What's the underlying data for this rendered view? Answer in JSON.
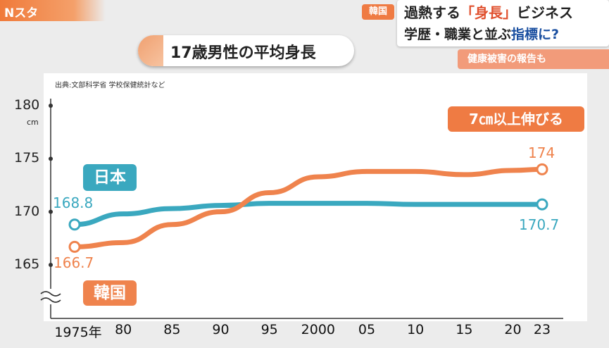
{
  "broadcast": {
    "logo": "Nスタ",
    "tag": "韓国",
    "headline_line1_pre": "過熱する",
    "headline_line1_em": "「身長」",
    "headline_line1_post": "ビジネス",
    "headline_line2_pre": "学歴・職業と並ぶ",
    "headline_line2_em": "指標に?",
    "sub_headline": "健康被害の報告も"
  },
  "colors": {
    "japan": "#3aa8bf",
    "korea": "#ef834d",
    "accent": "#ef7b43"
  },
  "chart_data": {
    "type": "line",
    "title": "17歳男性の平均身長",
    "source": "出典:文部科学省 学校保健統計など",
    "ylabel_unit": "cm",
    "x": [
      1975,
      1980,
      1985,
      1990,
      1995,
      2000,
      2005,
      2010,
      2015,
      2020,
      2023
    ],
    "x_tick_labels": [
      "1975年",
      "80",
      "85",
      "90",
      "95",
      "2000",
      "05",
      "10",
      "15",
      "20",
      "23"
    ],
    "y_ticks": [
      165,
      170,
      175,
      180
    ],
    "y_tick_labels": [
      "165",
      "170",
      "175",
      "180"
    ],
    "ylim": [
      162,
      182
    ],
    "axis_break": true,
    "series": [
      {
        "name": "日本",
        "color": "#3aa8bf",
        "values": [
          168.8,
          169.8,
          170.3,
          170.6,
          170.8,
          170.8,
          170.8,
          170.7,
          170.7,
          170.7,
          170.7
        ]
      },
      {
        "name": "韓国",
        "color": "#ef834d",
        "values": [
          166.7,
          167.1,
          168.8,
          170.0,
          171.8,
          173.3,
          173.8,
          173.8,
          173.5,
          173.9,
          174.0
        ]
      }
    ],
    "data_labels": {
      "japan_start": "168.8",
      "japan_end": "170.7",
      "korea_start": "166.7",
      "korea_end": "174"
    },
    "annotation": "7㎝以上伸びる"
  }
}
